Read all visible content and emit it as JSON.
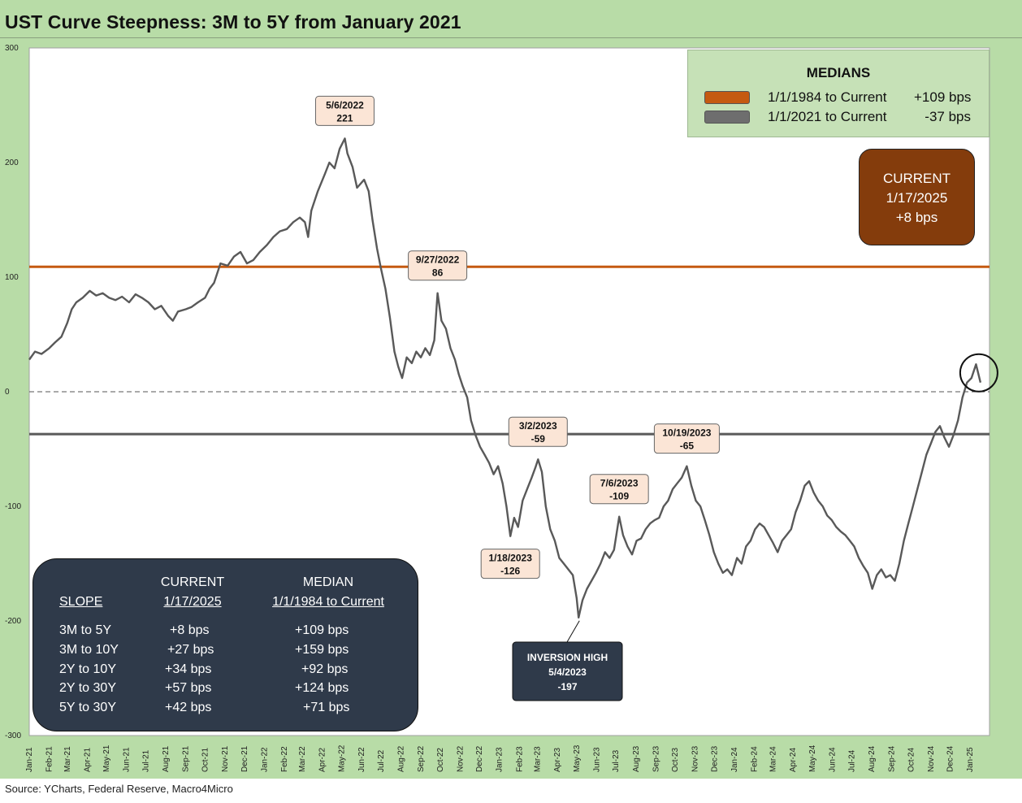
{
  "title": "UST Curve Steepness: 3M to 5Y from January 2021",
  "source": "Source: YCharts, Federal Reserve, Macro4Micro",
  "colors": {
    "background": "#b8dca7",
    "plot_area": "#ffffff",
    "series": "#595959",
    "median_1984": "#c55a11",
    "median_2021": "#595959",
    "current_box": "#843c0c",
    "slope_box": "#2f3a4a",
    "label_fill": "#fbe5d6",
    "inversion_box": "#2f3a4a"
  },
  "medians_legend": {
    "title": "MEDIANS",
    "rows": [
      {
        "label": "1/1/1984 to Current",
        "value": "+109 bps",
        "color": "#c55a11"
      },
      {
        "label": "1/1/2021 to Current",
        "value": "-37 bps",
        "color": "#6e6e6e"
      }
    ]
  },
  "current_box": {
    "line1": "CURRENT",
    "line2": "1/17/2025",
    "line3": "+8 bps"
  },
  "slope_table": {
    "headers": {
      "slope": "SLOPE",
      "current1": "CURRENT",
      "current2": "1/17/2025",
      "median1": "MEDIAN",
      "median2": "1/1/1984 to Current"
    },
    "rows": [
      {
        "slope": "3M to 5Y",
        "current": "+8  bps",
        "median": "+109 bps"
      },
      {
        "slope": "3M to 10Y",
        "current": "+27 bps",
        "median": "+159 bps"
      },
      {
        "slope": "2Y to 10Y",
        "current": "+34 bps",
        "median": "+92 bps"
      },
      {
        "slope": "2Y to 30Y",
        "current": "+57 bps",
        "median": "+124 bps"
      },
      {
        "slope": "5Y to 30Y",
        "current": "+42 bps",
        "median": "+71 bps"
      }
    ]
  },
  "chart_data": {
    "type": "line",
    "title": "UST Curve Steepness: 3M to 5Y from January 2021",
    "ylim": [
      -300,
      300
    ],
    "yticks": [
      300,
      200,
      100,
      0,
      -100,
      -200,
      -300
    ],
    "xlim": [
      "2021-01-01",
      "2025-01-31"
    ],
    "x_tick_labels": [
      "Jan-21",
      "Feb-21",
      "Mar-21",
      "Apr-21",
      "May-21",
      "Jun-21",
      "Jul-21",
      "Aug-21",
      "Sep-21",
      "Oct-21",
      "Nov-21",
      "Dec-21",
      "Jan-22",
      "Feb-22",
      "Mar-22",
      "Apr-22",
      "May-22",
      "Jun-22",
      "Jul-22",
      "Aug-22",
      "Sep-22",
      "Oct-22",
      "Nov-22",
      "Dec-22",
      "Jan-23",
      "Feb-23",
      "Mar-23",
      "Apr-23",
      "May-23",
      "Jun-23",
      "Jul-23",
      "Aug-23",
      "Sep-23",
      "Oct-23",
      "Nov-23",
      "Dec-23",
      "Jan-24",
      "Feb-24",
      "Mar-24",
      "Apr-24",
      "May-24",
      "Jun-24",
      "Jul-24",
      "Aug-24",
      "Sep-24",
      "Oct-24",
      "Nov-24",
      "Dec-24",
      "Jan-25"
    ],
    "reference_lines": [
      {
        "name": "1/1/1984 to Current median",
        "value": 109,
        "style": "solid",
        "color": "#c55a11"
      },
      {
        "name": "1/1/2021 to Current median",
        "value": -37,
        "style": "solid",
        "color": "#595959"
      },
      {
        "name": "zero",
        "value": 0,
        "style": "dashed",
        "color": "#555555"
      }
    ],
    "series": [
      {
        "values": [
          [
            "2021-01-01",
            28
          ],
          [
            "2021-01-10",
            35
          ],
          [
            "2021-01-20",
            33
          ],
          [
            "2021-02-01",
            38
          ],
          [
            "2021-02-10",
            43
          ],
          [
            "2021-02-20",
            48
          ],
          [
            "2021-03-01",
            60
          ],
          [
            "2021-03-08",
            72
          ],
          [
            "2021-03-15",
            78
          ],
          [
            "2021-03-25",
            82
          ],
          [
            "2021-04-05",
            88
          ],
          [
            "2021-04-15",
            84
          ],
          [
            "2021-04-25",
            86
          ],
          [
            "2021-05-05",
            82
          ],
          [
            "2021-05-15",
            80
          ],
          [
            "2021-05-25",
            83
          ],
          [
            "2021-06-05",
            78
          ],
          [
            "2021-06-15",
            85
          ],
          [
            "2021-06-25",
            82
          ],
          [
            "2021-07-05",
            78
          ],
          [
            "2021-07-15",
            72
          ],
          [
            "2021-07-25",
            75
          ],
          [
            "2021-08-05",
            66
          ],
          [
            "2021-08-12",
            62
          ],
          [
            "2021-08-20",
            70
          ],
          [
            "2021-09-01",
            72
          ],
          [
            "2021-09-10",
            74
          ],
          [
            "2021-09-20",
            78
          ],
          [
            "2021-10-01",
            82
          ],
          [
            "2021-10-08",
            90
          ],
          [
            "2021-10-15",
            95
          ],
          [
            "2021-10-25",
            112
          ],
          [
            "2021-11-05",
            110
          ],
          [
            "2021-11-15",
            118
          ],
          [
            "2021-11-25",
            122
          ],
          [
            "2021-12-05",
            112
          ],
          [
            "2021-12-15",
            115
          ],
          [
            "2021-12-25",
            122
          ],
          [
            "2022-01-05",
            128
          ],
          [
            "2022-01-15",
            135
          ],
          [
            "2022-01-25",
            140
          ],
          [
            "2022-02-05",
            142
          ],
          [
            "2022-02-15",
            148
          ],
          [
            "2022-02-25",
            152
          ],
          [
            "2022-03-05",
            148
          ],
          [
            "2022-03-10",
            135
          ],
          [
            "2022-03-15",
            158
          ],
          [
            "2022-03-25",
            175
          ],
          [
            "2022-04-05",
            190
          ],
          [
            "2022-04-12",
            200
          ],
          [
            "2022-04-20",
            195
          ],
          [
            "2022-04-28",
            212
          ],
          [
            "2022-05-06",
            221
          ],
          [
            "2022-05-10",
            208
          ],
          [
            "2022-05-18",
            196
          ],
          [
            "2022-05-25",
            178
          ],
          [
            "2022-06-05",
            185
          ],
          [
            "2022-06-12",
            175
          ],
          [
            "2022-06-18",
            150
          ],
          [
            "2022-06-25",
            125
          ],
          [
            "2022-07-01",
            108
          ],
          [
            "2022-07-08",
            90
          ],
          [
            "2022-07-15",
            65
          ],
          [
            "2022-07-22",
            35
          ],
          [
            "2022-07-28",
            22
          ],
          [
            "2022-08-03",
            12
          ],
          [
            "2022-08-10",
            30
          ],
          [
            "2022-08-18",
            25
          ],
          [
            "2022-08-25",
            35
          ],
          [
            "2022-09-01",
            30
          ],
          [
            "2022-09-08",
            38
          ],
          [
            "2022-09-15",
            32
          ],
          [
            "2022-09-22",
            45
          ],
          [
            "2022-09-27",
            86
          ],
          [
            "2022-10-03",
            62
          ],
          [
            "2022-10-10",
            55
          ],
          [
            "2022-10-17",
            38
          ],
          [
            "2022-10-24",
            28
          ],
          [
            "2022-10-30",
            15
          ],
          [
            "2022-11-05",
            5
          ],
          [
            "2022-11-12",
            -5
          ],
          [
            "2022-11-18",
            -25
          ],
          [
            "2022-11-25",
            -38
          ],
          [
            "2022-12-02",
            -48
          ],
          [
            "2022-12-09",
            -55
          ],
          [
            "2022-12-16",
            -62
          ],
          [
            "2022-12-23",
            -72
          ],
          [
            "2022-12-30",
            -65
          ],
          [
            "2023-01-06",
            -80
          ],
          [
            "2023-01-12",
            -100
          ],
          [
            "2023-01-18",
            -126
          ],
          [
            "2023-01-24",
            -110
          ],
          [
            "2023-01-30",
            -118
          ],
          [
            "2023-02-06",
            -95
          ],
          [
            "2023-02-13",
            -85
          ],
          [
            "2023-02-20",
            -75
          ],
          [
            "2023-02-26",
            -66
          ],
          [
            "2023-03-02",
            -59
          ],
          [
            "2023-03-08",
            -70
          ],
          [
            "2023-03-14",
            -100
          ],
          [
            "2023-03-21",
            -120
          ],
          [
            "2023-03-28",
            -130
          ],
          [
            "2023-04-04",
            -145
          ],
          [
            "2023-04-11",
            -150
          ],
          [
            "2023-04-18",
            -155
          ],
          [
            "2023-04-25",
            -160
          ],
          [
            "2023-05-01",
            -180
          ],
          [
            "2023-05-04",
            -197
          ],
          [
            "2023-05-10",
            -182
          ],
          [
            "2023-05-17",
            -172
          ],
          [
            "2023-05-24",
            -165
          ],
          [
            "2023-05-31",
            -158
          ],
          [
            "2023-06-07",
            -150
          ],
          [
            "2023-06-14",
            -140
          ],
          [
            "2023-06-21",
            -145
          ],
          [
            "2023-06-28",
            -138
          ],
          [
            "2023-07-06",
            -109
          ],
          [
            "2023-07-12",
            -125
          ],
          [
            "2023-07-19",
            -135
          ],
          [
            "2023-07-26",
            -142
          ],
          [
            "2023-08-02",
            -130
          ],
          [
            "2023-08-09",
            -128
          ],
          [
            "2023-08-16",
            -120
          ],
          [
            "2023-08-23",
            -115
          ],
          [
            "2023-08-30",
            -112
          ],
          [
            "2023-09-06",
            -110
          ],
          [
            "2023-09-13",
            -100
          ],
          [
            "2023-09-20",
            -95
          ],
          [
            "2023-09-27",
            -85
          ],
          [
            "2023-10-04",
            -80
          ],
          [
            "2023-10-11",
            -75
          ],
          [
            "2023-10-19",
            -65
          ],
          [
            "2023-10-26",
            -82
          ],
          [
            "2023-11-02",
            -95
          ],
          [
            "2023-11-09",
            -100
          ],
          [
            "2023-11-16",
            -112
          ],
          [
            "2023-11-23",
            -125
          ],
          [
            "2023-11-30",
            -140
          ],
          [
            "2023-12-07",
            -150
          ],
          [
            "2023-12-14",
            -158
          ],
          [
            "2023-12-21",
            -155
          ],
          [
            "2023-12-28",
            -160
          ],
          [
            "2024-01-05",
            -145
          ],
          [
            "2024-01-12",
            -150
          ],
          [
            "2024-01-19",
            -135
          ],
          [
            "2024-01-26",
            -130
          ],
          [
            "2024-02-02",
            -120
          ],
          [
            "2024-02-09",
            -115
          ],
          [
            "2024-02-16",
            -118
          ],
          [
            "2024-02-23",
            -125
          ],
          [
            "2024-03-01",
            -132
          ],
          [
            "2024-03-08",
            -140
          ],
          [
            "2024-03-15",
            -130
          ],
          [
            "2024-03-22",
            -125
          ],
          [
            "2024-03-29",
            -120
          ],
          [
            "2024-04-05",
            -105
          ],
          [
            "2024-04-12",
            -95
          ],
          [
            "2024-04-19",
            -82
          ],
          [
            "2024-04-26",
            -78
          ],
          [
            "2024-05-03",
            -88
          ],
          [
            "2024-05-10",
            -95
          ],
          [
            "2024-05-17",
            -100
          ],
          [
            "2024-05-24",
            -108
          ],
          [
            "2024-05-31",
            -112
          ],
          [
            "2024-06-07",
            -118
          ],
          [
            "2024-06-14",
            -122
          ],
          [
            "2024-06-21",
            -125
          ],
          [
            "2024-06-28",
            -130
          ],
          [
            "2024-07-05",
            -135
          ],
          [
            "2024-07-12",
            -145
          ],
          [
            "2024-07-19",
            -152
          ],
          [
            "2024-07-26",
            -158
          ],
          [
            "2024-08-02",
            -172
          ],
          [
            "2024-08-09",
            -160
          ],
          [
            "2024-08-16",
            -155
          ],
          [
            "2024-08-23",
            -162
          ],
          [
            "2024-08-30",
            -160
          ],
          [
            "2024-09-06",
            -165
          ],
          [
            "2024-09-13",
            -150
          ],
          [
            "2024-09-20",
            -130
          ],
          [
            "2024-09-27",
            -115
          ],
          [
            "2024-10-04",
            -100
          ],
          [
            "2024-10-11",
            -85
          ],
          [
            "2024-10-18",
            -70
          ],
          [
            "2024-10-25",
            -55
          ],
          [
            "2024-11-01",
            -45
          ],
          [
            "2024-11-08",
            -35
          ],
          [
            "2024-11-15",
            -30
          ],
          [
            "2024-11-22",
            -40
          ],
          [
            "2024-11-29",
            -48
          ],
          [
            "2024-12-06",
            -38
          ],
          [
            "2024-12-13",
            -25
          ],
          [
            "2024-12-20",
            -5
          ],
          [
            "2024-12-27",
            8
          ],
          [
            "2025-01-03",
            12
          ],
          [
            "2025-01-10",
            24
          ],
          [
            "2025-01-17",
            8
          ]
        ]
      }
    ],
    "annotations": [
      {
        "date": "2022-05-06",
        "value": 221,
        "line1": "5/6/2022",
        "line2": "221",
        "position": "above"
      },
      {
        "date": "2022-09-27",
        "value": 86,
        "line1": "9/27/2022",
        "line2": "86",
        "position": "above"
      },
      {
        "date": "2023-01-18",
        "value": -126,
        "line1": "1/18/2023",
        "line2": "-126",
        "position": "below"
      },
      {
        "date": "2023-03-02",
        "value": -59,
        "line1": "3/2/2023",
        "line2": "-59",
        "position": "above"
      },
      {
        "date": "2023-07-06",
        "value": -109,
        "line1": "7/6/2023",
        "line2": "-109",
        "position": "above"
      },
      {
        "date": "2023-10-19",
        "value": -65,
        "line1": "10/19/2023",
        "line2": "-65",
        "position": "above"
      }
    ],
    "inversion_callout": {
      "line1": "INVERSION HIGH",
      "line2": "5/4/2023",
      "line3": "-197",
      "date": "2023-05-04",
      "value": -197
    }
  }
}
